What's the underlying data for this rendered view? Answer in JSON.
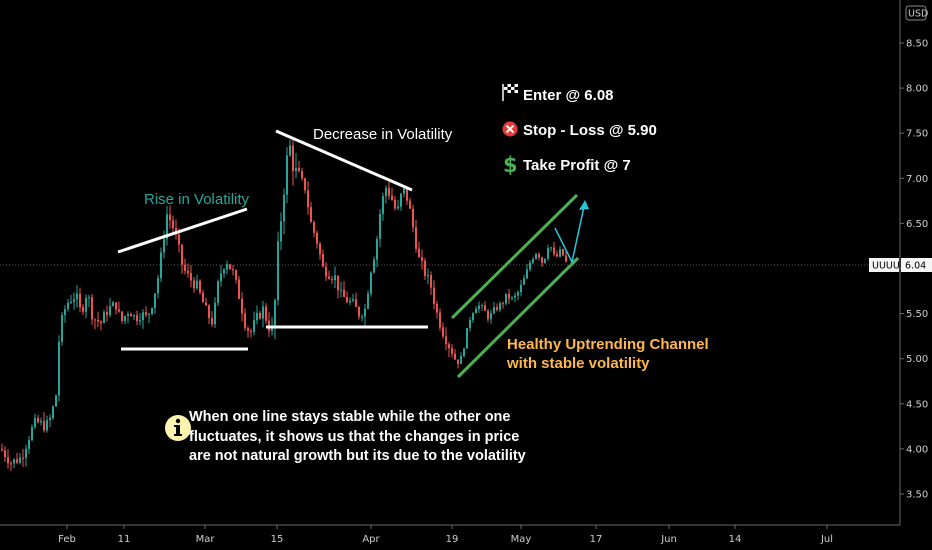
{
  "chart_data": {
    "type": "candlestick",
    "currency": "USD",
    "symbol": "UUUU",
    "last_price": 6.04,
    "ylim": [
      3.3,
      8.75
    ],
    "y_ticks": [
      "8.50",
      "8.00",
      "7.50",
      "7.00",
      "6.50",
      "6.00",
      "5.50",
      "5.00",
      "4.50",
      "4.00",
      "3.50"
    ],
    "x_ticks": [
      "Feb",
      "11",
      "Mar",
      "15",
      "Apr",
      "19",
      "May",
      "17",
      "Jun",
      "14",
      "Jul"
    ],
    "colors": {
      "up": "#26a69a",
      "down": "#ef5350",
      "background": "#000000"
    },
    "annotations": {
      "rise": "Rise in Volatility",
      "decrease": "Decrease in Volatility",
      "enter": "Enter @ 6.08",
      "stop": "Stop - Loss @ 5.90",
      "take_profit": "Take Profit @ 7",
      "channel_line1": "Healthy Uptrending Channel",
      "channel_line2": "with stable volatility",
      "note_line1": "When one line stays stable while the other one",
      "note_line2": "fluctuates, it shows us that the changes in price",
      "note_line3": "are not natural growth but its due to the volatility"
    }
  },
  "icons": {
    "enter": "checkered-flag-icon",
    "stop": "red-x-circle-icon",
    "take_profit": "green-dollar-icon",
    "note": "info-icon"
  }
}
